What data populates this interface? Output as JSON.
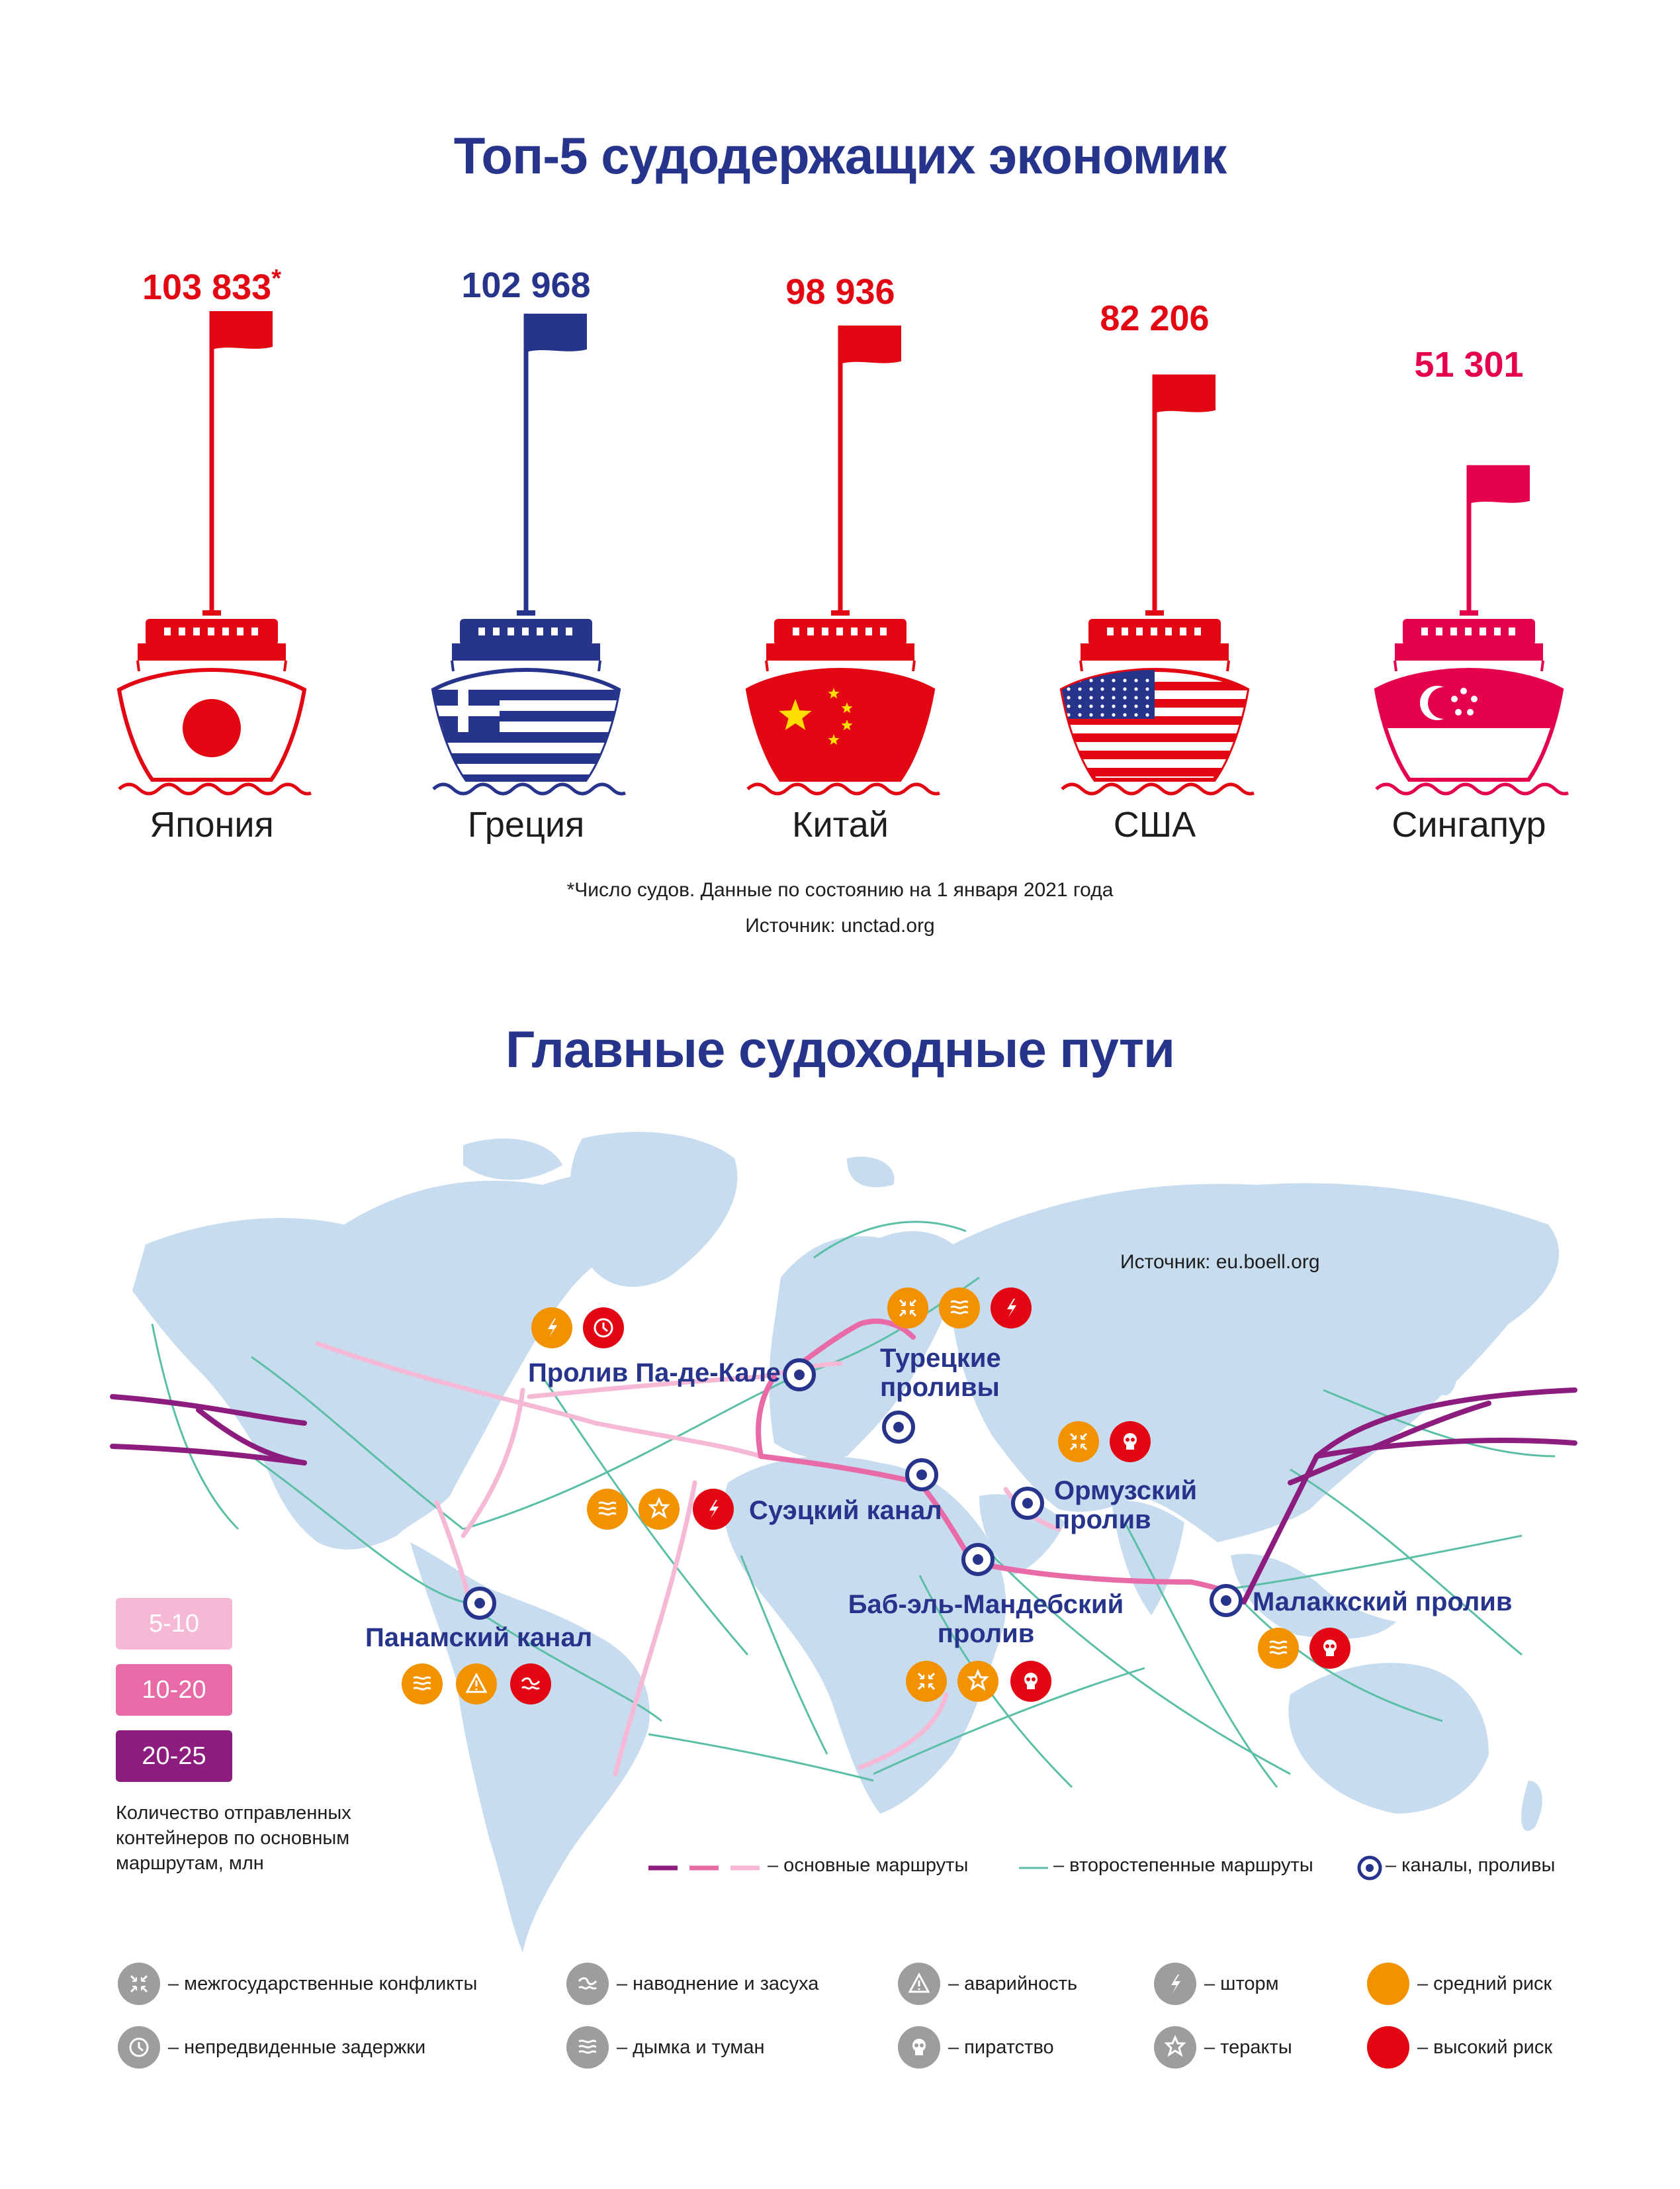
{
  "titles": {
    "top": "Топ-5 судодержащих экономик",
    "map": "Главные судоходные пути"
  },
  "chart_data": [
    {
      "type": "bar",
      "title": "Топ-5 судодержащих экономик",
      "categories": [
        "Япония",
        "Греция",
        "Китай",
        "США",
        "Сингапур"
      ],
      "values": [
        103833,
        102968,
        98936,
        82206,
        51301
      ],
      "value_labels": [
        "103 833",
        "102 968",
        "98 936",
        "82 206",
        "51 301"
      ],
      "asterisk": "*",
      "colors": [
        "#e30613",
        "#27348b",
        "#e30613",
        "#e30613",
        "#e5004b"
      ]
    }
  ],
  "notes": {
    "footnote": "*Число судов. Данные по состоянию на 1 января 2021 года",
    "source": "Источник: unctad.org"
  },
  "map": {
    "source": "Источник: eu.boell.org",
    "straits": {
      "pas_de_calais": "Пролив Па-де-Кале",
      "turkish": "Турецкие проливы",
      "suez": "Суэцкий канал",
      "hormuz": "Ормузский пролив",
      "bab": "Баб-эль-Мандебский пролив",
      "malacca": "Малаккский пролив",
      "panama": "Панамский канал"
    },
    "legend_boxes": [
      {
        "label": "5-10",
        "color": "#f5b9d6"
      },
      {
        "label": "10-20",
        "color": "#e86ba7"
      },
      {
        "label": "20-25",
        "color": "#8c1c7d"
      }
    ],
    "legend_caption": "Количество отправленных контейнеров по основным маршрутам, млн",
    "route_legend": {
      "main": "– основные маршруты",
      "secondary": "– второстепенные маршруты",
      "straits": "– каналы, проливы"
    }
  },
  "risks": {
    "conflicts": "– межгосударственные конфликты",
    "delays": "– непредвиденные задержки",
    "flood": "– наводнение и засуха",
    "haze": "– дымка и туман",
    "accident": "– аварийность",
    "piracy": "– пиратство",
    "storm": "– шторм",
    "terror": "– теракты",
    "medium": "– средний риск",
    "high": "– высокий риск"
  },
  "colors": {
    "navy": "#27348b",
    "red": "#e30613",
    "orange": "#f39200",
    "land": "#c8dcf0",
    "secondary_route": "#5bbfa5",
    "grey_icon": "#9d9d9c"
  }
}
